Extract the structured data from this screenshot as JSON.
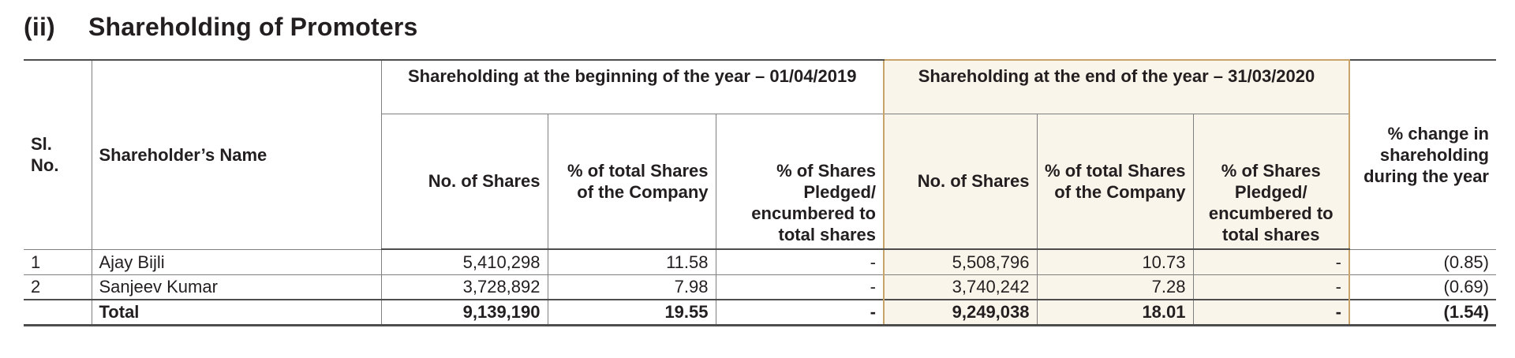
{
  "section": {
    "number": "(ii)",
    "title": "Shareholding of Promoters"
  },
  "table": {
    "headers": {
      "sl_no": "Sl. No.",
      "name": "Shareholder’s Name",
      "beginning_group": "Shareholding at the beginning of the year – 01/04/2019",
      "end_group": "Shareholding at the end of the year – 31/03/2020",
      "no_of_shares": "No. of Shares",
      "pct_total": "% of total Shares of the Company",
      "pct_pledged_beginning": "% of Shares Pledged/ encumbered to total shares",
      "pct_pledged_end": "% of Shares Pledged/ encumbered to total shares",
      "change": "% change in shareholding during the year"
    },
    "rows": [
      {
        "sl": "1",
        "name": "Ajay Bijli",
        "begin_shares": "5,410,298",
        "begin_pct": "11.58",
        "begin_pledged": "-",
        "end_shares": "5,508,796",
        "end_pct": "10.73",
        "end_pledged": "-",
        "change": "(0.85)"
      },
      {
        "sl": "2",
        "name": "Sanjeev Kumar",
        "begin_shares": "3,728,892",
        "begin_pct": "7.98",
        "begin_pledged": "-",
        "end_shares": "3,740,242",
        "end_pct": "7.28",
        "end_pledged": "-",
        "change": "(0.69)"
      }
    ],
    "total": {
      "sl": "",
      "name": "Total",
      "begin_shares": "9,139,190",
      "begin_pct": "19.55",
      "begin_pledged": "-",
      "end_shares": "9,249,038",
      "end_pct": "18.01",
      "end_pledged": "-",
      "change": "(1.54)"
    }
  },
  "colors": {
    "end_highlight_bg": "#faf5ea",
    "end_highlight_border": "#c9a46a",
    "rule": "#4d4d4d"
  }
}
